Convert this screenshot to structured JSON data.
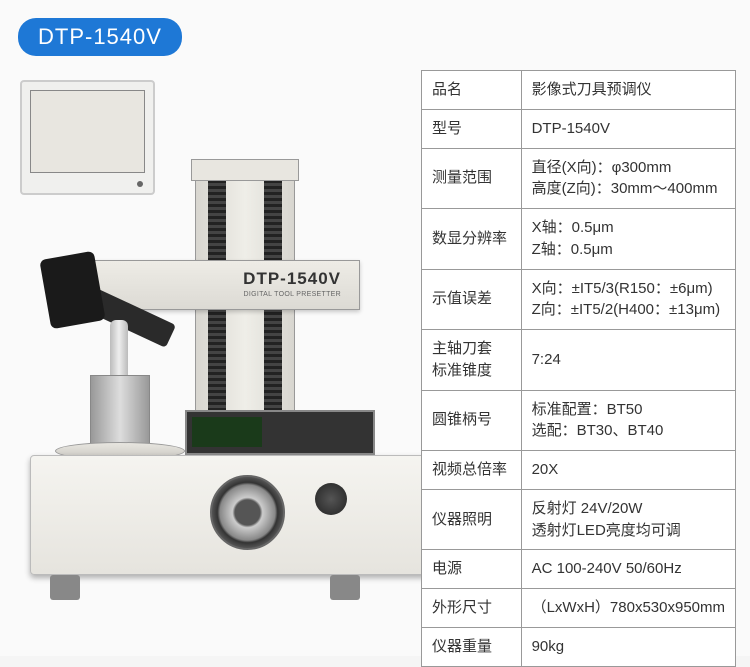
{
  "model_badge": "DTP-1540V",
  "arm_label": "DTP-1540V",
  "arm_sub": "DIGITAL TOOL PRESETTER",
  "specs": [
    {
      "k": "品名",
      "v": "影像式刀具预调仪"
    },
    {
      "k": "型号",
      "v": "DTP-1540V"
    },
    {
      "k": "测量范围",
      "v": "直径(X向)：φ300mm\n高度(Z向)：30mm～400mm"
    },
    {
      "k": "数显分辨率",
      "v": "X轴：0.5μm\nZ轴：0.5μm"
    },
    {
      "k": "示值误差",
      "v": "X向：±IT5/3(R150：±6μm)\nZ向：±IT5/2(H400：±13μm)"
    },
    {
      "k": "主轴刀套\n标准锥度",
      "v": "7:24"
    },
    {
      "k": "圆锥柄号",
      "v": "标准配置：BT50\n选配：BT30、BT40"
    },
    {
      "k": "视频总倍率",
      "v": "20X"
    },
    {
      "k": "仪器照明",
      "v": "反射灯  24V/20W\n透射灯LED亮度均可调"
    },
    {
      "k": "电源",
      "v": "AC 100-240V   50/60Hz"
    },
    {
      "k": "外形尺寸",
      "v": "（LxWxH）780x530x950mm"
    },
    {
      "k": "仪器重量",
      "v": "90kg"
    }
  ],
  "colors": {
    "badge_bg": "#1e78d6",
    "badge_fg": "#ffffff",
    "page_bg": "#fafafa",
    "border": "#999999",
    "text": "#333333"
  }
}
